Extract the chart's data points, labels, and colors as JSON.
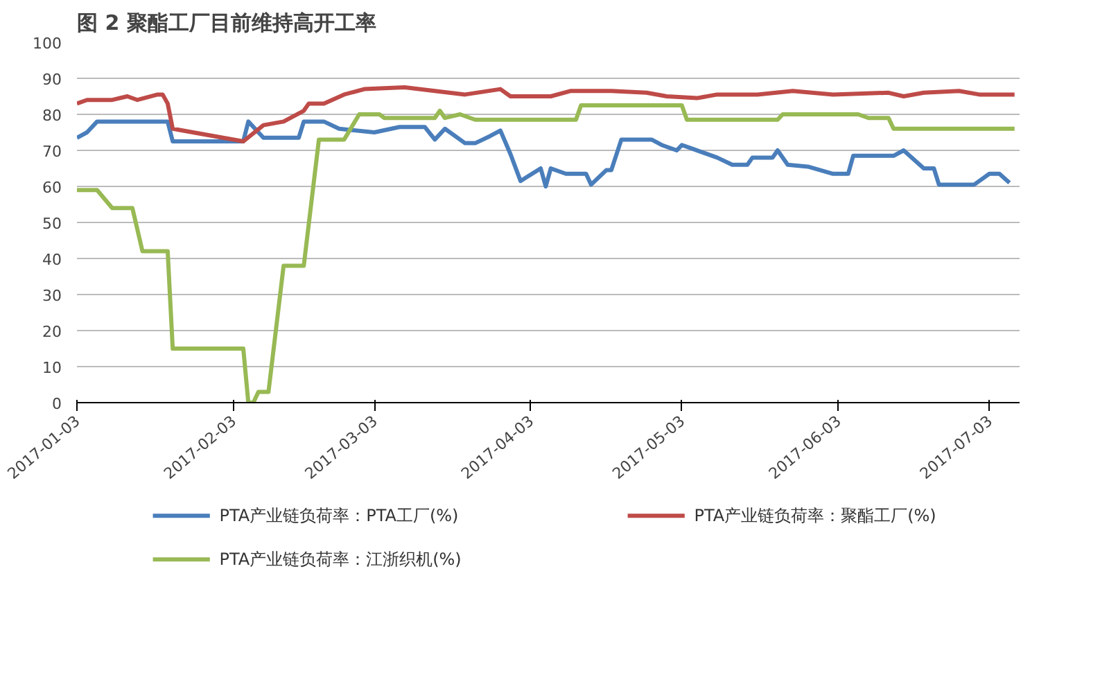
{
  "chart_data": {
    "type": "line",
    "title": "图 2 聚酯工厂目前维持高开工率",
    "xlim": [
      "2017-01-03",
      "2017-07-09"
    ],
    "xticks": [
      "2017-01-03",
      "2017-02-03",
      "2017-03-03",
      "2017-04-03",
      "2017-05-03",
      "2017-06-03",
      "2017-07-03"
    ],
    "ylim": [
      0,
      100
    ],
    "yticks": [
      0,
      10,
      20,
      30,
      40,
      50,
      60,
      70,
      80,
      90,
      100
    ],
    "grid": "y",
    "legend": "bottom",
    "marker": "none",
    "line_style": "solid",
    "series": [
      {
        "name": "PTA产业链负荷率：PTA工厂(%)",
        "color": "#4a7ebb",
        "x": [
          "2017-01-03",
          "2017-01-05",
          "2017-01-07",
          "2017-01-21",
          "2017-01-22",
          "2017-02-05",
          "2017-02-06",
          "2017-02-09",
          "2017-02-16",
          "2017-02-17",
          "2017-02-21",
          "2017-02-24",
          "2017-03-03",
          "2017-03-08",
          "2017-03-13",
          "2017-03-15",
          "2017-03-17",
          "2017-03-21",
          "2017-03-23",
          "2017-03-26",
          "2017-03-28",
          "2017-03-30",
          "2017-04-01",
          "2017-04-05",
          "2017-04-06",
          "2017-04-07",
          "2017-04-10",
          "2017-04-14",
          "2017-04-15",
          "2017-04-18",
          "2017-04-19",
          "2017-04-21",
          "2017-04-27",
          "2017-04-29",
          "2017-05-02",
          "2017-05-03",
          "2017-05-05",
          "2017-05-10",
          "2017-05-13",
          "2017-05-16",
          "2017-05-17",
          "2017-05-21",
          "2017-05-22",
          "2017-05-24",
          "2017-05-28",
          "2017-06-02",
          "2017-06-05",
          "2017-06-06",
          "2017-06-14",
          "2017-06-16",
          "2017-06-20",
          "2017-06-22",
          "2017-06-23",
          "2017-06-30",
          "2017-07-03",
          "2017-07-05",
          "2017-07-07"
        ],
        "values": [
          73.5,
          75,
          78,
          78,
          72.5,
          72.5,
          78,
          73.5,
          73.5,
          78,
          78,
          76,
          75,
          76.5,
          76.5,
          73,
          76,
          72,
          72,
          74,
          75.5,
          69,
          61.5,
          65,
          60,
          65,
          63.5,
          63.5,
          60.5,
          64.5,
          64.5,
          73,
          73,
          71.5,
          70,
          71.5,
          70.5,
          68,
          66,
          66,
          68,
          68,
          70,
          66,
          65.5,
          63.5,
          63.5,
          68.5,
          68.5,
          70,
          65,
          65,
          60.5,
          60.5,
          63.5,
          63.5,
          61
        ]
      },
      {
        "name": "PTA产业链负荷率：聚酯工厂(%)",
        "color": "#be4b48",
        "x": [
          "2017-01-03",
          "2017-01-05",
          "2017-01-10",
          "2017-01-13",
          "2017-01-15",
          "2017-01-19",
          "2017-01-20",
          "2017-01-21",
          "2017-01-22",
          "2017-02-05",
          "2017-02-09",
          "2017-02-13",
          "2017-02-17",
          "2017-02-18",
          "2017-02-21",
          "2017-02-25",
          "2017-03-01",
          "2017-03-09",
          "2017-03-15",
          "2017-03-21",
          "2017-03-28",
          "2017-03-30",
          "2017-04-07",
          "2017-04-11",
          "2017-04-19",
          "2017-04-26",
          "2017-04-30",
          "2017-05-06",
          "2017-05-10",
          "2017-05-18",
          "2017-05-25",
          "2017-06-02",
          "2017-06-13",
          "2017-06-16",
          "2017-06-20",
          "2017-06-27",
          "2017-07-01",
          "2017-07-08"
        ],
        "values": [
          83,
          84,
          84,
          85,
          84,
          85.5,
          85.5,
          83,
          76,
          72.5,
          77,
          78,
          81,
          83,
          83,
          85.5,
          87,
          87.5,
          86.5,
          85.5,
          87,
          85,
          85,
          86.5,
          86.5,
          86,
          85,
          84.5,
          85.5,
          85.5,
          86.5,
          85.5,
          86,
          85,
          86,
          86.5,
          85.5,
          85.5
        ]
      },
      {
        "name": "PTA产业链负荷率：江浙织机(%)",
        "color": "#98b954",
        "x": [
          "2017-01-03",
          "2017-01-07",
          "2017-01-10",
          "2017-01-14",
          "2017-01-16",
          "2017-01-21",
          "2017-01-22",
          "2017-02-05",
          "2017-02-06",
          "2017-02-07",
          "2017-02-08",
          "2017-02-10",
          "2017-02-13",
          "2017-02-17",
          "2017-02-20",
          "2017-02-25",
          "2017-02-28",
          "2017-03-04",
          "2017-03-05",
          "2017-03-15",
          "2017-03-16",
          "2017-03-17",
          "2017-03-20",
          "2017-03-23",
          "2017-04-12",
          "2017-04-13",
          "2017-05-03",
          "2017-05-04",
          "2017-05-22",
          "2017-05-23",
          "2017-06-07",
          "2017-06-09",
          "2017-06-13",
          "2017-06-14",
          "2017-07-08"
        ],
        "values": [
          59,
          59,
          54,
          54,
          42,
          42,
          15,
          15,
          0,
          0,
          3,
          3,
          38,
          38,
          73,
          73,
          80,
          80,
          79,
          79,
          81,
          79,
          80,
          78.5,
          78.5,
          82.5,
          82.5,
          78.5,
          78.5,
          80,
          80,
          79,
          79,
          76,
          76
        ]
      }
    ]
  }
}
